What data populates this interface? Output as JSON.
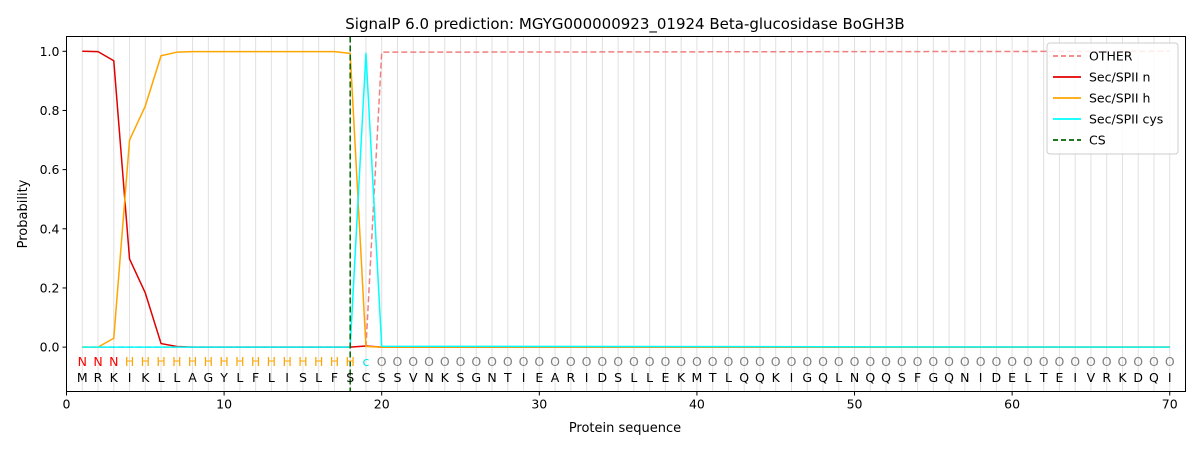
{
  "chart_data": {
    "type": "line",
    "title": "SignalP 6.0 prediction: MGYG000000923_01924 Beta-glucosidase BoGH3B",
    "xlabel": "Protein sequence",
    "ylabel": "Probability",
    "xlim": [
      0,
      71
    ],
    "ylim": [
      -0.15,
      1.05
    ],
    "x_ticks": [
      0,
      10,
      20,
      30,
      40,
      50,
      60,
      70
    ],
    "y_ticks": [
      0.0,
      0.2,
      0.4,
      0.6,
      0.8,
      1.0
    ],
    "grid": "vertical lines at each residue position",
    "legend_position": "top-right",
    "sequence": [
      "M",
      "R",
      "K",
      "I",
      "K",
      "L",
      "L",
      "A",
      "G",
      "Y",
      "L",
      "F",
      "L",
      "I",
      "S",
      "L",
      "F",
      "S",
      "C",
      "S",
      "S",
      "V",
      "N",
      "K",
      "S",
      "G",
      "N",
      "T",
      "I",
      "E",
      "A",
      "R",
      "I",
      "D",
      "S",
      "L",
      "L",
      "E",
      "K",
      "M",
      "T",
      "L",
      "Q",
      "Q",
      "K",
      "I",
      "G",
      "Q",
      "L",
      "N",
      "Q",
      "Q",
      "S",
      "F",
      "G",
      "Q",
      "N",
      "I",
      "D",
      "E",
      "L",
      "T",
      "E",
      "I",
      "V",
      "R",
      "K",
      "D",
      "Q",
      "I"
    ],
    "labels": [
      "N",
      "N",
      "N",
      "H",
      "H",
      "H",
      "H",
      "H",
      "H",
      "H",
      "H",
      "H",
      "H",
      "H",
      "H",
      "H",
      "H",
      "H",
      "c",
      "O",
      "O",
      "O",
      "O",
      "O",
      "O",
      "O",
      "O",
      "O",
      "O",
      "O",
      "O",
      "O",
      "O",
      "O",
      "O",
      "O",
      "O",
      "O",
      "O",
      "O",
      "O",
      "O",
      "O",
      "O",
      "O",
      "O",
      "O",
      "O",
      "O",
      "O",
      "O",
      "O",
      "O",
      "O",
      "O",
      "O",
      "O",
      "O",
      "O",
      "O",
      "O",
      "O",
      "O",
      "O",
      "O",
      "O",
      "O",
      "O",
      "O",
      "O"
    ],
    "label_colors": {
      "N": "#ff0000",
      "H": "#ffa500",
      "c": "#00e5e5",
      "O": "#808080"
    },
    "series": [
      {
        "name": "OTHER",
        "color": "#f08080",
        "dash": "dashed",
        "segments": [
          {
            "x": [
              1,
              18
            ],
            "y": [
              0.0,
              0.0
            ]
          },
          {
            "x": [
              19,
              20,
              70
            ],
            "y": [
              0.0,
              0.997,
              1.0
            ]
          }
        ]
      },
      {
        "name": "Sec/SPII n",
        "color": "#e00000",
        "dash": "solid",
        "segments": [
          {
            "x": [
              1,
              2,
              3,
              4,
              5,
              6,
              7,
              8,
              18,
              19,
              20,
              70
            ],
            "y": [
              1.0,
              0.999,
              0.968,
              0.298,
              0.183,
              0.012,
              0.002,
              0.0,
              0.0,
              0.004,
              0.0,
              0.0
            ]
          }
        ]
      },
      {
        "name": "Sec/SPII h",
        "color": "#ffa500",
        "dash": "solid",
        "segments": [
          {
            "x": [
              1,
              2,
              3,
              4,
              5,
              6,
              7,
              8,
              17,
              18,
              19,
              20,
              70
            ],
            "y": [
              0.0,
              0.0,
              0.03,
              0.7,
              0.815,
              0.985,
              0.997,
              0.999,
              0.999,
              0.993,
              0.002,
              0.0,
              0.0
            ]
          }
        ]
      },
      {
        "name": "Sec/SPII cys",
        "color": "#00ffff",
        "dash": "solid",
        "segments": [
          {
            "x": [
              1,
              18,
              19,
              20,
              70
            ],
            "y": [
              0.0,
              0.0,
              0.993,
              0.003,
              0.0
            ]
          }
        ]
      },
      {
        "name": "CS",
        "color": "#006400",
        "dash": "dashed",
        "vertical_at": 18
      }
    ]
  }
}
